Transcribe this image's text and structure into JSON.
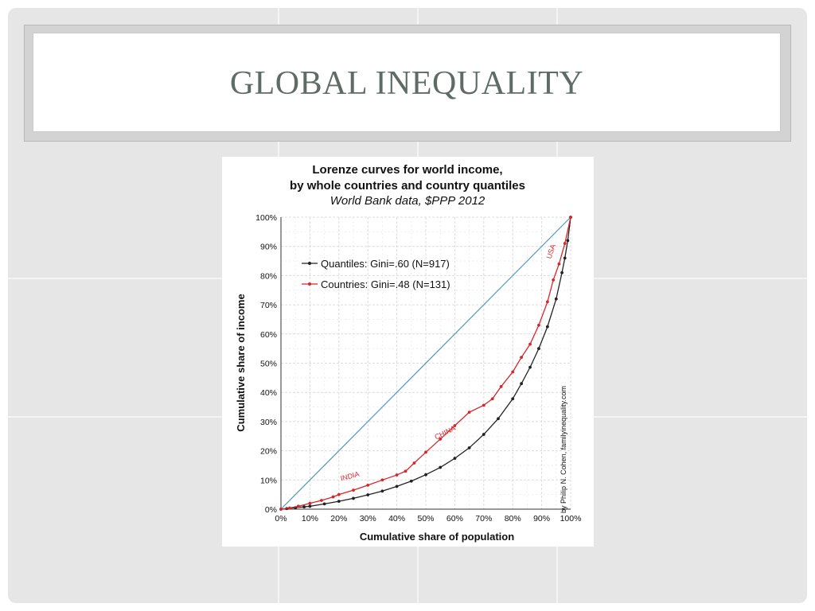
{
  "slide": {
    "title": "Global Inequality"
  },
  "chart_data": {
    "type": "line",
    "title": "Lorenze curves for world income,",
    "title_line2": "by whole countries and country quantiles",
    "subtitle": "World Bank data, $PPP 2012",
    "xlabel": "Cumulative share of population",
    "ylabel": "Cumulative share of income",
    "xlim": [
      0,
      100
    ],
    "ylim": [
      0,
      100
    ],
    "x_ticks": [
      "0%",
      "10%",
      "20%",
      "30%",
      "40%",
      "50%",
      "60%",
      "70%",
      "80%",
      "90%",
      "100%"
    ],
    "y_ticks": [
      "0%",
      "10%",
      "20%",
      "30%",
      "40%",
      "50%",
      "60%",
      "70%",
      "80%",
      "90%",
      "100%"
    ],
    "grid": true,
    "legend_position": "top-left",
    "credit": "by Philip N. Cohen, familyinequality.com",
    "annotations": [
      {
        "text": "INDIA",
        "x": 24,
        "y": 10.5,
        "angle": -15
      },
      {
        "text": "CHINA",
        "x": 57,
        "y": 25.5,
        "angle": -27
      },
      {
        "text": "USA",
        "x": 94,
        "y": 88,
        "angle": -72
      }
    ],
    "series": [
      {
        "name": "Equality",
        "color": "#4a9ac2",
        "legend": false,
        "x": [
          0,
          100
        ],
        "y": [
          0,
          100
        ]
      },
      {
        "name": "Quantiles: Gini=.60 (N=917)",
        "color": "#222222",
        "x": [
          0,
          2,
          5,
          8,
          10,
          15,
          20,
          25,
          30,
          35,
          40,
          45,
          50,
          55,
          60,
          65,
          70,
          75,
          80,
          83,
          86,
          89,
          92,
          95,
          97,
          98,
          99,
          100
        ],
        "y": [
          0,
          0.2,
          0.5,
          0.8,
          1,
          1.8,
          2.7,
          3.7,
          4.9,
          6.2,
          7.8,
          9.6,
          11.8,
          14.3,
          17.4,
          21,
          25.6,
          31,
          37.8,
          43,
          48.6,
          55,
          62.5,
          72,
          81,
          86,
          92,
          100
        ]
      },
      {
        "name": "Countries: Gini=.48 (N=131)",
        "color": "#d7262b",
        "x": [
          0,
          3,
          6,
          10,
          14,
          18,
          20,
          25,
          30,
          35,
          40,
          43,
          46,
          50,
          55,
          60,
          65,
          70,
          73,
          76,
          80,
          83,
          86,
          89,
          92,
          94,
          96,
          98,
          100
        ],
        "y": [
          0,
          0.4,
          1,
          2,
          3,
          4.2,
          5,
          6.5,
          8.2,
          10,
          11.7,
          13,
          15.8,
          19.5,
          24,
          28.6,
          33.2,
          35.6,
          37.8,
          42,
          47,
          52,
          56.5,
          63,
          71,
          78.5,
          84,
          91,
          100
        ]
      }
    ]
  }
}
